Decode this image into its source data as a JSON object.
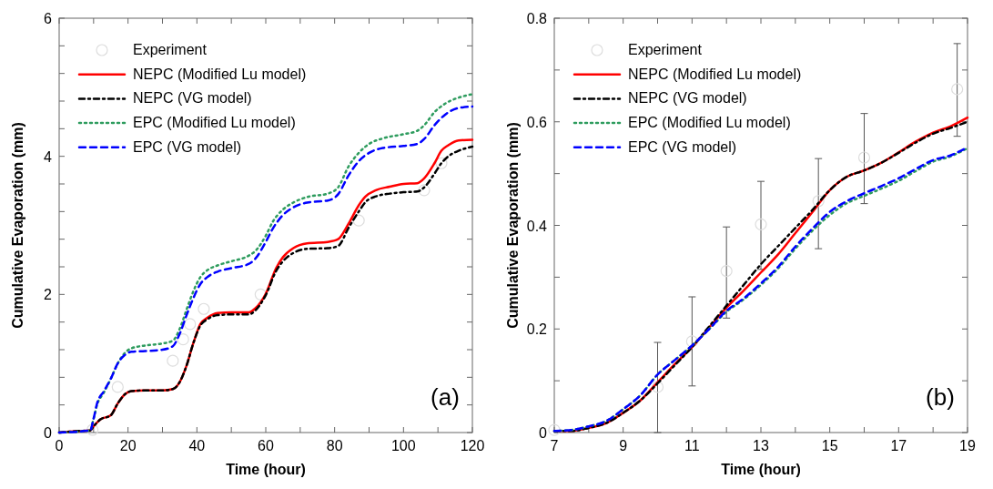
{
  "chart_data": [
    {
      "type": "line",
      "xlabel": "Time (hour)",
      "ylabel": "Cumulative Evaporation (mm)",
      "xlim": [
        0,
        120
      ],
      "ylim": [
        0,
        6
      ],
      "xticks": [
        0,
        {
          "value": 10,
          "label": null
        },
        20,
        {
          "value": 30,
          "label": null
        },
        40,
        {
          "value": 50,
          "label": null
        },
        60,
        {
          "value": 70,
          "label": null
        },
        80,
        {
          "value": 90,
          "label": null
        },
        100,
        {
          "value": 110,
          "label": null
        },
        120
      ],
      "yticks": [
        0,
        {
          "value": 0.4,
          "label": null
        },
        {
          "value": 0.8,
          "label": null
        },
        {
          "value": 1.2,
          "label": null
        },
        {
          "value": 1.6,
          "label": null
        },
        2,
        {
          "value": 2.4,
          "label": null
        },
        {
          "value": 2.8,
          "label": null
        },
        {
          "value": 3.2,
          "label": null
        },
        {
          "value": 3.6,
          "label": null
        },
        4,
        {
          "value": 4.4,
          "label": null
        },
        {
          "value": 4.8,
          "label": null
        },
        {
          "value": 5.2,
          "label": null
        },
        {
          "value": 5.6,
          "label": null
        },
        6
      ],
      "legend": "top left",
      "annotations": [
        "(a)"
      ],
      "series": [
        {
          "name": "Experiment",
          "type": "scatter",
          "marker": "circle",
          "color": "#dddddd",
          "x": [
            9.7,
            17,
            33,
            36,
            38,
            42,
            58.5,
            87,
            106,
            111
          ],
          "values": [
            0.04,
            0.66,
            1.04,
            1.35,
            1.57,
            1.79,
            2.0,
            3.07,
            3.51,
            3.9
          ]
        },
        {
          "name": "NEPC (Modified Lu model)",
          "type": "line",
          "line_style": "solid",
          "color": "#ff0000",
          "x": [
            0,
            5,
            9,
            10,
            12,
            15,
            17,
            19,
            21,
            25,
            30,
            33,
            35,
            37,
            39,
            41,
            43,
            46,
            50,
            55,
            57,
            60,
            63,
            65,
            68,
            72,
            78,
            81,
            84,
            87,
            89,
            92,
            96,
            100,
            104,
            106,
            109,
            111,
            113,
            116,
            120
          ],
          "values": [
            0,
            0.02,
            0.03,
            0.09,
            0.19,
            0.25,
            0.42,
            0.55,
            0.6,
            0.61,
            0.61,
            0.63,
            0.73,
            0.97,
            1.3,
            1.57,
            1.66,
            1.73,
            1.74,
            1.74,
            1.8,
            2.01,
            2.38,
            2.54,
            2.67,
            2.74,
            2.76,
            2.8,
            3.02,
            3.29,
            3.42,
            3.51,
            3.56,
            3.6,
            3.61,
            3.68,
            3.9,
            4.08,
            4.16,
            4.23,
            4.24
          ]
        },
        {
          "name": "NEPC (VG model)",
          "type": "line",
          "line_style": "dashdot",
          "color": "#000000",
          "x": [
            0,
            5,
            9,
            10,
            12,
            15,
            17,
            19,
            21,
            25,
            30,
            33,
            35,
            37,
            39,
            41,
            43,
            46,
            50,
            55,
            57,
            60,
            63,
            65,
            68,
            72,
            78,
            81,
            84,
            87,
            89,
            92,
            96,
            100,
            104,
            106,
            109,
            111,
            113,
            116,
            120
          ],
          "values": [
            0,
            0.02,
            0.03,
            0.09,
            0.19,
            0.25,
            0.42,
            0.55,
            0.6,
            0.61,
            0.61,
            0.63,
            0.73,
            0.97,
            1.3,
            1.55,
            1.64,
            1.7,
            1.71,
            1.71,
            1.77,
            1.99,
            2.34,
            2.48,
            2.6,
            2.66,
            2.67,
            2.7,
            2.96,
            3.2,
            3.34,
            3.42,
            3.46,
            3.48,
            3.49,
            3.55,
            3.75,
            3.9,
            4.0,
            4.08,
            4.14
          ]
        },
        {
          "name": "EPC (Modified Lu model)",
          "type": "line",
          "line_style": "dotted",
          "color": "#2e9c5e",
          "x": [
            0,
            9,
            10,
            11,
            13,
            15,
            17,
            19,
            21,
            25,
            30,
            33,
            35,
            37,
            39,
            41,
            43,
            46,
            50,
            55,
            57,
            60,
            62,
            65,
            68,
            72,
            78,
            81,
            84,
            87,
            90,
            94,
            100,
            104,
            106,
            109,
            112,
            116,
            120
          ],
          "values": [
            0,
            0.03,
            0.2,
            0.4,
            0.58,
            0.78,
            1.0,
            1.15,
            1.22,
            1.26,
            1.29,
            1.33,
            1.5,
            1.78,
            2.05,
            2.25,
            2.35,
            2.42,
            2.48,
            2.56,
            2.63,
            2.85,
            3.05,
            3.23,
            3.33,
            3.41,
            3.46,
            3.55,
            3.85,
            4.05,
            4.18,
            4.26,
            4.32,
            4.37,
            4.45,
            4.64,
            4.76,
            4.85,
            4.9
          ]
        },
        {
          "name": "EPC (VG model)",
          "type": "line",
          "line_style": "dashed",
          "color": "#0000ff",
          "x": [
            0,
            9,
            10,
            11,
            13,
            15,
            17,
            19,
            21,
            25,
            30,
            33,
            35,
            37,
            39,
            41,
            43,
            46,
            50,
            55,
            57,
            60,
            62,
            65,
            68,
            72,
            78,
            81,
            84,
            87,
            90,
            94,
            100,
            104,
            106,
            109,
            112,
            116,
            120
          ],
          "values": [
            0,
            0.03,
            0.2,
            0.42,
            0.6,
            0.78,
            1.0,
            1.12,
            1.17,
            1.18,
            1.2,
            1.25,
            1.43,
            1.7,
            1.95,
            2.15,
            2.25,
            2.33,
            2.38,
            2.44,
            2.52,
            2.76,
            2.95,
            3.15,
            3.26,
            3.33,
            3.36,
            3.45,
            3.72,
            3.93,
            4.05,
            4.12,
            4.15,
            4.18,
            4.25,
            4.45,
            4.6,
            4.7,
            4.72
          ]
        }
      ]
    },
    {
      "type": "line",
      "xlabel": "Time (hour)",
      "ylabel": "Cumulative Evaporation (mm)",
      "xlim": [
        7,
        19
      ],
      "ylim": [
        0,
        0.8
      ],
      "xticks": [
        7,
        {
          "value": 8,
          "label": null
        },
        9,
        {
          "value": 10,
          "label": null
        },
        11,
        {
          "value": 12,
          "label": null
        },
        13,
        {
          "value": 14,
          "label": null
        },
        15,
        {
          "value": 16,
          "label": null
        },
        17,
        {
          "value": 18,
          "label": null
        },
        19
      ],
      "yticks": [
        0,
        {
          "value": 0.1,
          "label": null
        },
        0.2,
        {
          "value": 0.3,
          "label": null
        },
        0.4,
        {
          "value": 0.5,
          "label": null
        },
        0.6,
        {
          "value": 0.7,
          "label": null
        },
        0.8
      ],
      "legend": "top left",
      "annotations": [
        "(b)"
      ],
      "series": [
        {
          "name": "Experiment",
          "type": "scatter",
          "marker": "circle",
          "color": "#dddddd",
          "x": [
            7,
            10,
            11,
            12,
            13,
            14.67,
            16,
            18.7
          ],
          "values": [
            0.005,
            0.088,
            0.176,
            0.312,
            0.402,
            0.447,
            0.531,
            0.663
          ],
          "errors": [
            null,
            [
              0,
              0.174
            ],
            [
              0.09,
              0.262
            ],
            [
              0.221,
              0.397
            ],
            [
              0.315,
              0.485
            ],
            [
              0.355,
              0.529
            ],
            [
              0.442,
              0.616
            ],
            [
              0.572,
              0.751
            ]
          ]
        },
        {
          "name": "NEPC (Modified Lu model)",
          "type": "line",
          "line_style": "solid",
          "color": "#ff0000",
          "x": [
            7,
            7.5,
            8,
            8.5,
            9,
            9.5,
            10,
            10.5,
            11,
            11.5,
            12,
            12.5,
            13,
            13.5,
            14,
            14.5,
            15,
            15.5,
            16,
            16.5,
            17,
            17.5,
            18,
            18.5,
            19
          ],
          "values": [
            0.003,
            0.003,
            0.009,
            0.018,
            0.038,
            0.062,
            0.097,
            0.132,
            0.165,
            0.203,
            0.241,
            0.274,
            0.309,
            0.344,
            0.385,
            0.426,
            0.468,
            0.494,
            0.506,
            0.521,
            0.541,
            0.562,
            0.579,
            0.591,
            0.608
          ]
        },
        {
          "name": "NEPC (VG model)",
          "type": "line",
          "line_style": "dashdot",
          "color": "#000000",
          "x": [
            7,
            7.5,
            8,
            8.5,
            9,
            9.5,
            10,
            10.5,
            11,
            11.5,
            12,
            12.5,
            13,
            13.5,
            14,
            14.5,
            15,
            15.5,
            16,
            16.5,
            17,
            17.5,
            18,
            18.5,
            19
          ],
          "values": [
            0.003,
            0.003,
            0.009,
            0.018,
            0.038,
            0.062,
            0.095,
            0.13,
            0.165,
            0.205,
            0.245,
            0.285,
            0.325,
            0.36,
            0.395,
            0.43,
            0.468,
            0.494,
            0.506,
            0.521,
            0.54,
            0.56,
            0.577,
            0.588,
            0.6
          ]
        },
        {
          "name": "EPC (Modified Lu model)",
          "type": "line",
          "line_style": "dotted",
          "color": "#2e9c5e",
          "x": [
            7,
            7.5,
            8,
            8.5,
            9,
            9.5,
            10,
            10.5,
            11,
            11.5,
            12,
            12.5,
            13,
            13.5,
            14,
            14.5,
            15,
            15.5,
            16,
            16.5,
            17,
            17.5,
            18,
            18.5,
            19
          ],
          "values": [
            0.003,
            0.005,
            0.012,
            0.022,
            0.045,
            0.072,
            0.112,
            0.14,
            0.168,
            0.2,
            0.233,
            0.257,
            0.285,
            0.317,
            0.355,
            0.39,
            0.42,
            0.443,
            0.457,
            0.471,
            0.486,
            0.505,
            0.523,
            0.533,
            0.549
          ]
        },
        {
          "name": "EPC (VG model)",
          "type": "line",
          "line_style": "dashed",
          "color": "#0000ff",
          "x": [
            7,
            7.5,
            8,
            8.5,
            9,
            9.5,
            10,
            10.5,
            11,
            11.5,
            12,
            12.5,
            13,
            13.5,
            14,
            14.5,
            15,
            15.5,
            16,
            16.5,
            17,
            17.5,
            18,
            18.5,
            19
          ],
          "values": [
            0.003,
            0.005,
            0.012,
            0.022,
            0.045,
            0.072,
            0.112,
            0.14,
            0.168,
            0.2,
            0.235,
            0.259,
            0.288,
            0.32,
            0.359,
            0.394,
            0.426,
            0.447,
            0.462,
            0.476,
            0.491,
            0.509,
            0.526,
            0.535,
            0.551
          ]
        }
      ]
    }
  ]
}
